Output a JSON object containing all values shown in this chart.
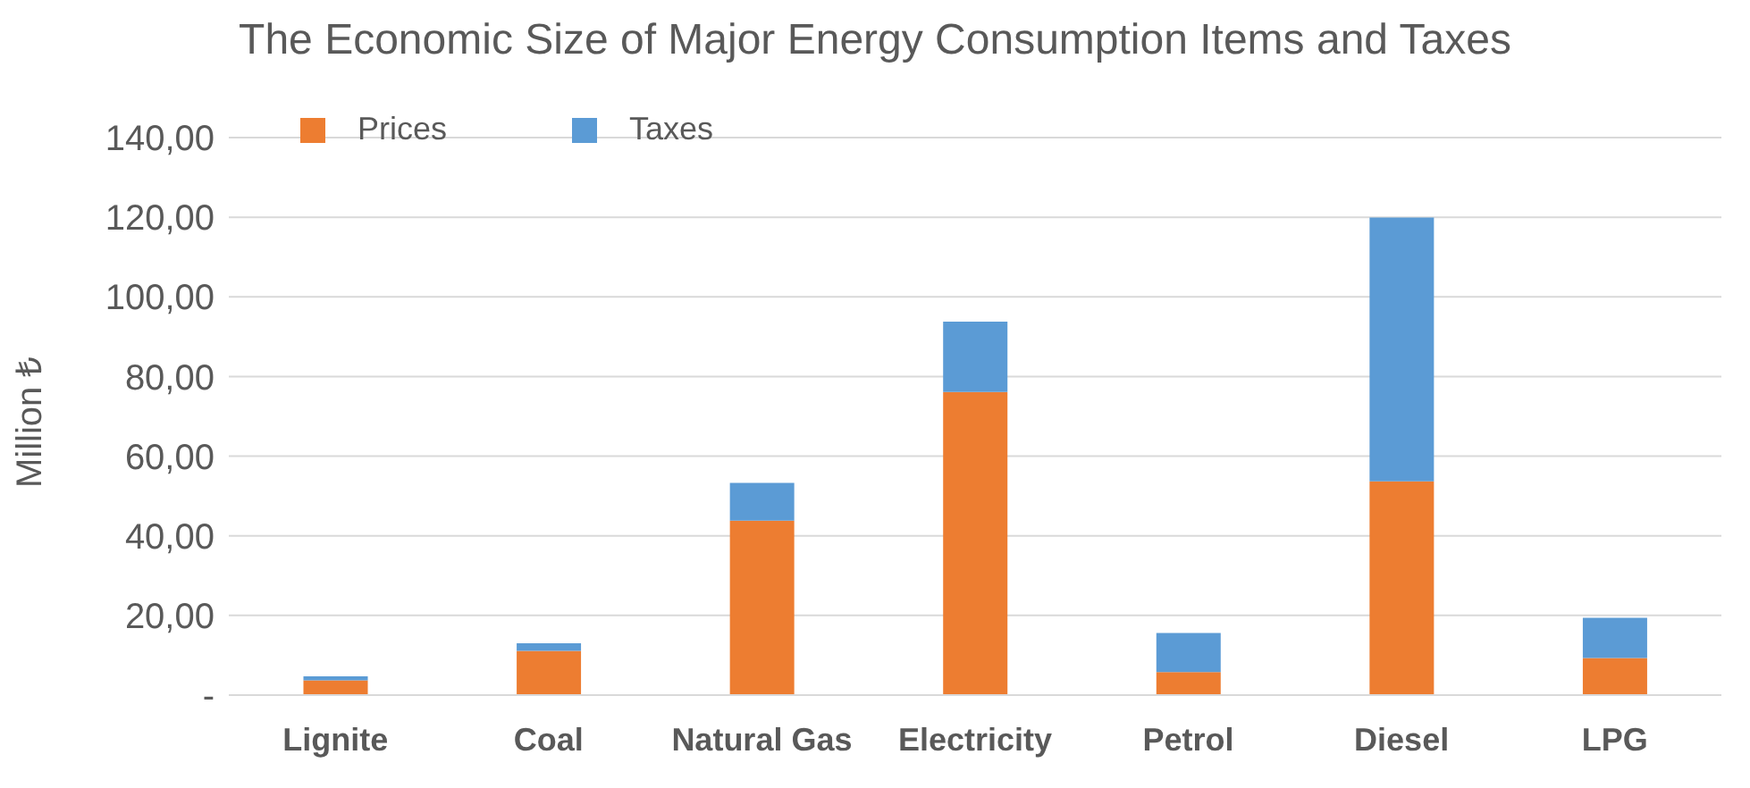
{
  "chart_data": {
    "type": "bar",
    "title": "The Economic Size of Major Energy Consumption Items and Taxes",
    "ylabel": "Million ₺",
    "categories": [
      "Lignite",
      "Coal",
      "Natural Gas",
      "Electricity",
      "Petrol",
      "Diesel",
      "LPG"
    ],
    "series": [
      {
        "name": "Prices",
        "color": "#ed7d31",
        "values": [
          3.7,
          11.1,
          43.8,
          76.1,
          5.8,
          53.7,
          9.3
        ]
      },
      {
        "name": "Taxes",
        "color": "#5b9bd5",
        "values": [
          1.0,
          1.9,
          9.5,
          17.7,
          9.8,
          66.2,
          10.1
        ]
      }
    ],
    "stacked": true,
    "ylim": [
      0,
      140
    ],
    "yticks": [
      {
        "value": 0,
        "label": "-"
      },
      {
        "value": 20,
        "label": "20,00"
      },
      {
        "value": 40,
        "label": "40,00"
      },
      {
        "value": 60,
        "label": "60,00"
      },
      {
        "value": 80,
        "label": "80,00"
      },
      {
        "value": 100,
        "label": "100,00"
      },
      {
        "value": 120,
        "label": "120,00"
      },
      {
        "value": 140,
        "label": "140,00"
      }
    ],
    "grid": "y",
    "legend": "top left"
  }
}
